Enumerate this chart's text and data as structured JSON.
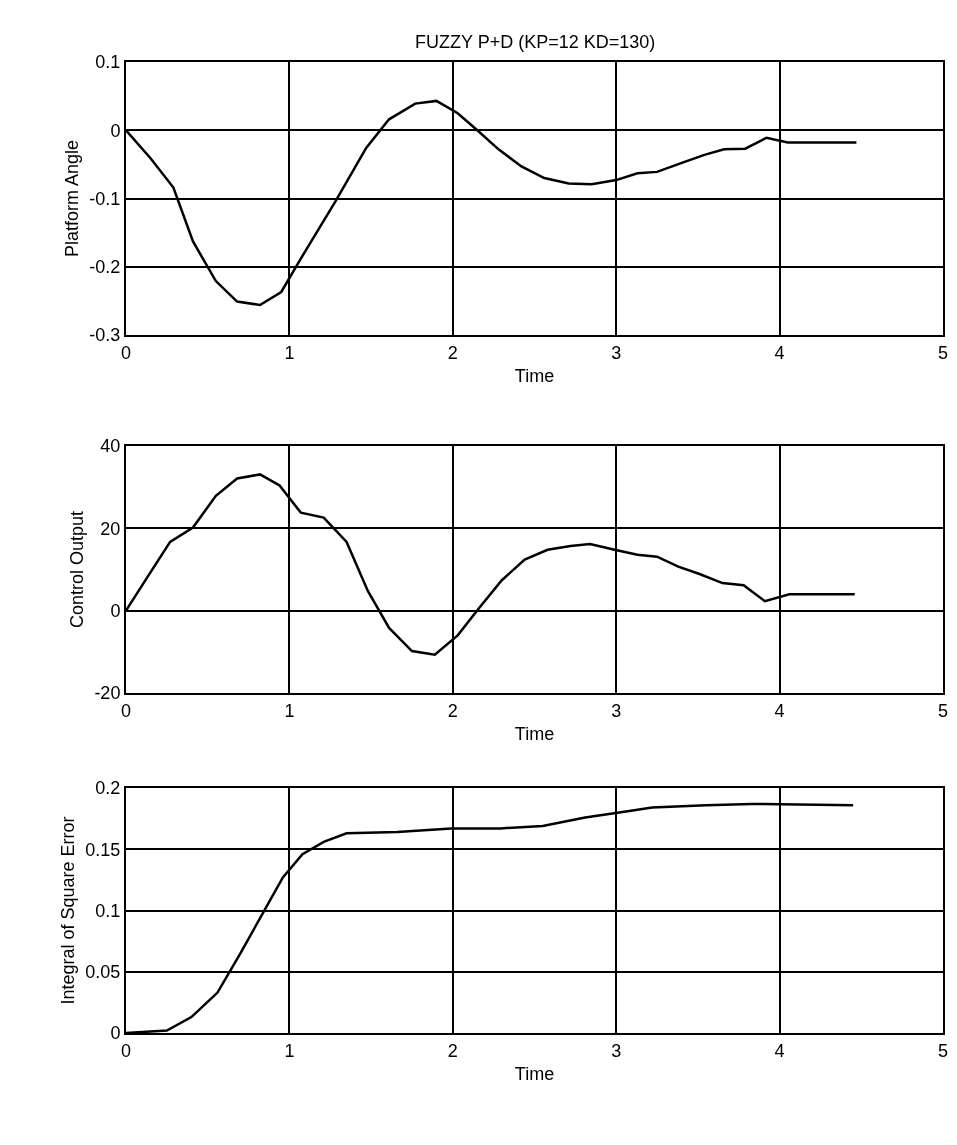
{
  "chart_data": [
    {
      "type": "line",
      "title": "FUZZY P+D (KP=12 KD=130)",
      "xlabel": "Time",
      "ylabel": "Platform Angle",
      "color": "#000000",
      "grid": true,
      "x": [
        0,
        0.15,
        0.29,
        0.41,
        0.55,
        0.68,
        0.82,
        0.95,
        1.08,
        1.28,
        1.47,
        1.61,
        1.77,
        1.9,
        2.03,
        2.15,
        2.28,
        2.42,
        2.56,
        2.71,
        2.85,
        3.0,
        3.13,
        3.25,
        3.41,
        3.54,
        3.66,
        3.79,
        3.92,
        4.05,
        4.47
      ],
      "values": [
        0,
        -0.041,
        -0.084,
        -0.163,
        -0.221,
        -0.251,
        -0.256,
        -0.237,
        -0.184,
        -0.105,
        -0.026,
        0.016,
        0.039,
        0.043,
        0.025,
        0,
        -0.028,
        -0.053,
        -0.07,
        -0.078,
        -0.079,
        -0.073,
        -0.063,
        -0.061,
        -0.047,
        -0.036,
        -0.028,
        -0.027,
        -0.011,
        -0.018,
        -0.018
      ],
      "xlim": [
        0,
        5
      ],
      "xticks": [
        0,
        1,
        2,
        3,
        4,
        5
      ],
      "ylim": [
        -0.3,
        0.1
      ],
      "yticks": [
        -0.3,
        -0.2,
        -0.1,
        0,
        0.1
      ]
    },
    {
      "type": "line",
      "xlabel": "Time",
      "ylabel": "Control Output",
      "color": "#000000",
      "grid": true,
      "x": [
        0,
        0.13,
        0.27,
        0.41,
        0.55,
        0.68,
        0.82,
        0.94,
        1.07,
        1.21,
        1.35,
        1.48,
        1.61,
        1.75,
        1.89,
        2.03,
        2.16,
        2.3,
        2.44,
        2.58,
        2.72,
        2.84,
        2.99,
        3.13,
        3.25,
        3.38,
        3.51,
        3.65,
        3.78,
        3.91,
        4.06,
        4.46
      ],
      "values": [
        0,
        8.1,
        16.7,
        20.2,
        27.9,
        32.1,
        33.1,
        30.4,
        23.8,
        22.6,
        16.7,
        4.8,
        -4.2,
        -9.8,
        -10.7,
        -6,
        0.6,
        7.4,
        12.4,
        14.8,
        15.7,
        16.2,
        14.8,
        13.6,
        13.1,
        10.7,
        8.9,
        6.7,
        6.2,
        2.3,
        4,
        4
      ],
      "xlim": [
        0,
        5
      ],
      "xticks": [
        0,
        1,
        2,
        3,
        4,
        5
      ],
      "ylim": [
        -20,
        40
      ],
      "yticks": [
        -20,
        0,
        20,
        40
      ]
    },
    {
      "type": "line",
      "xlabel": "Time",
      "ylabel": "Integral of Square Error",
      "color": "#000000",
      "grid": true,
      "x": [
        0,
        0.25,
        0.4,
        0.56,
        0.7,
        0.83,
        0.96,
        1.08,
        1.21,
        1.35,
        1.66,
        1.99,
        2.29,
        2.55,
        2.81,
        3.07,
        3.22,
        3.55,
        3.83,
        4.45
      ],
      "values": [
        0,
        0.002,
        0.013,
        0.033,
        0.065,
        0.096,
        0.127,
        0.146,
        0.156,
        0.163,
        0.164,
        0.167,
        0.167,
        0.169,
        0.176,
        0.181,
        0.184,
        0.186,
        0.187,
        0.186
      ],
      "xlim": [
        0,
        5
      ],
      "xticks": [
        0,
        1,
        2,
        3,
        4,
        5
      ],
      "ylim": [
        0,
        0.2
      ],
      "yticks": [
        0,
        0.05,
        0.1,
        0.15,
        0.2
      ]
    }
  ]
}
